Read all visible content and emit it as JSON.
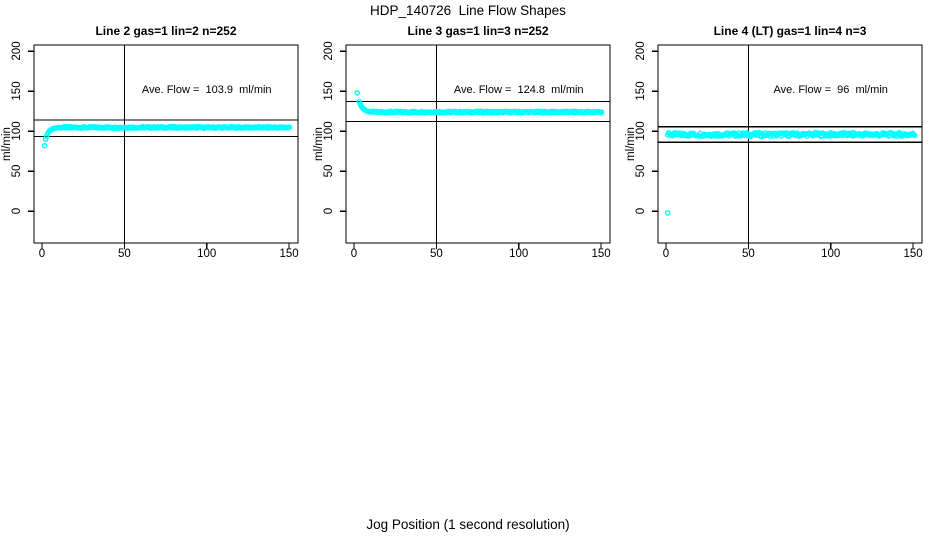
{
  "figure": {
    "title": "HDP_140726  Line Flow Shapes",
    "xlabel": "Jog Position (1 second resolution)",
    "background": "#ffffff",
    "text_color": "#000000"
  },
  "chart_data": {
    "type": "scatter",
    "title": "HDP_140726  Line Flow Shapes",
    "xlabel": "Jog Position (1 second resolution)",
    "ylabel": "ml/min",
    "x_ticks": [
      0,
      50,
      100,
      150
    ],
    "y_ticks": [
      0,
      50,
      100,
      150,
      200
    ],
    "xlim": [
      -5,
      155
    ],
    "ylim": [
      -40,
      210
    ],
    "grid": false,
    "legend": "none",
    "point_color": "#00ffff",
    "line_color": "#000000",
    "panels": [
      {
        "title": "Line 2 gas=1 lin=2 n=252",
        "n": 252,
        "ave_flow": 103.9,
        "annotation": "Ave. Flow =  103.9  ml/min",
        "annotation_at": {
          "x": 100,
          "y": 150
        },
        "ref_lines": [
          114.3,
          93.5
        ],
        "vline_x": 50,
        "lead_points": [
          [
            1.5,
            82
          ],
          [
            2.2,
            90
          ],
          [
            2.8,
            94
          ],
          [
            3.4,
            97
          ],
          [
            4,
            99
          ],
          [
            4.6,
            100.5
          ],
          [
            5.2,
            101.5
          ],
          [
            5.8,
            102.3
          ],
          [
            6.4,
            102.9
          ],
          [
            7,
            103.4
          ],
          [
            7.8,
            103.8
          ],
          [
            8.6,
            104.1
          ],
          [
            9.4,
            104.4
          ],
          [
            10.2,
            104.6
          ],
          [
            11,
            104.8
          ]
        ],
        "band": {
          "x_from": 11.6,
          "x_to": 150.5,
          "step": 0.6,
          "y": 104.8,
          "jitter": 0.9,
          "seed": 7
        }
      },
      {
        "title": "Line 3 gas=1 lin=3 n=252",
        "n": 252,
        "ave_flow": 124.8,
        "annotation": "Ave. Flow =  124.8  ml/min",
        "annotation_at": {
          "x": 100,
          "y": 150
        },
        "ref_lines": [
          137.3,
          112.3
        ],
        "vline_x": 50,
        "lead_points": [
          [
            2,
            148
          ],
          [
            3.2,
            137
          ],
          [
            3.8,
            134
          ],
          [
            4.4,
            131.5
          ],
          [
            5,
            129.8
          ],
          [
            5.6,
            128.4
          ],
          [
            6.2,
            127.3
          ],
          [
            6.8,
            126.4
          ],
          [
            7.4,
            125.8
          ],
          [
            8,
            125.3
          ],
          [
            8.8,
            124.9
          ],
          [
            9.6,
            124.6
          ],
          [
            10.4,
            124.4
          ],
          [
            11.2,
            124.2
          ]
        ],
        "band": {
          "x_from": 11.8,
          "x_to": 150.5,
          "step": 0.6,
          "y": 124.1,
          "jitter": 0.9,
          "seed": 13
        }
      },
      {
        "title": "Line 4 (LT) gas=1 lin=4 n=3",
        "n": 3,
        "ave_flow": 96,
        "annotation": "Ave. Flow =  96  ml/min",
        "annotation_at": {
          "x": 100,
          "y": 150
        },
        "ref_lines": [
          105.6,
          86.4
        ],
        "vline_x": 50,
        "lead_points": [
          [
            1,
            -2
          ]
        ],
        "band": {
          "x_from": 1,
          "x_to": 151,
          "step": 0.6,
          "y": 96,
          "jitter": 2.2,
          "seed": 29
        }
      }
    ]
  }
}
